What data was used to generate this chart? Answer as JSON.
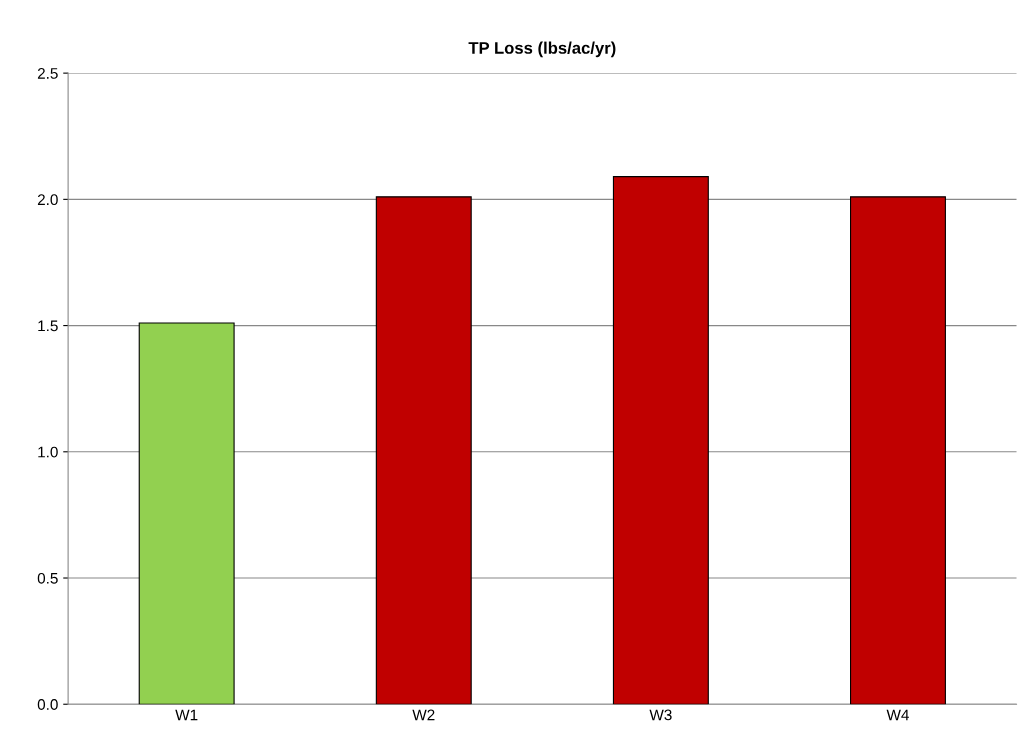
{
  "chart_data": {
    "type": "bar",
    "title": "TP Loss (lbs/ac/yr)",
    "categories": [
      "W1",
      "W2",
      "W3",
      "W4"
    ],
    "values": [
      1.51,
      2.01,
      2.09,
      2.01
    ],
    "colors": [
      "#92d050",
      "#c00000",
      "#c00000",
      "#c00000"
    ],
    "ylim": [
      0,
      2.5
    ],
    "yticks": [
      {
        "value": 0,
        "label": "0.0"
      },
      {
        "value": 0.5,
        "label": "0.5"
      },
      {
        "value": 1.0,
        "label": "1.0"
      },
      {
        "value": 1.5,
        "label": "1.5"
      },
      {
        "value": 2.0,
        "label": "2.0"
      },
      {
        "value": 2.5,
        "label": "2.5"
      }
    ],
    "grid": "y",
    "legend": false
  }
}
